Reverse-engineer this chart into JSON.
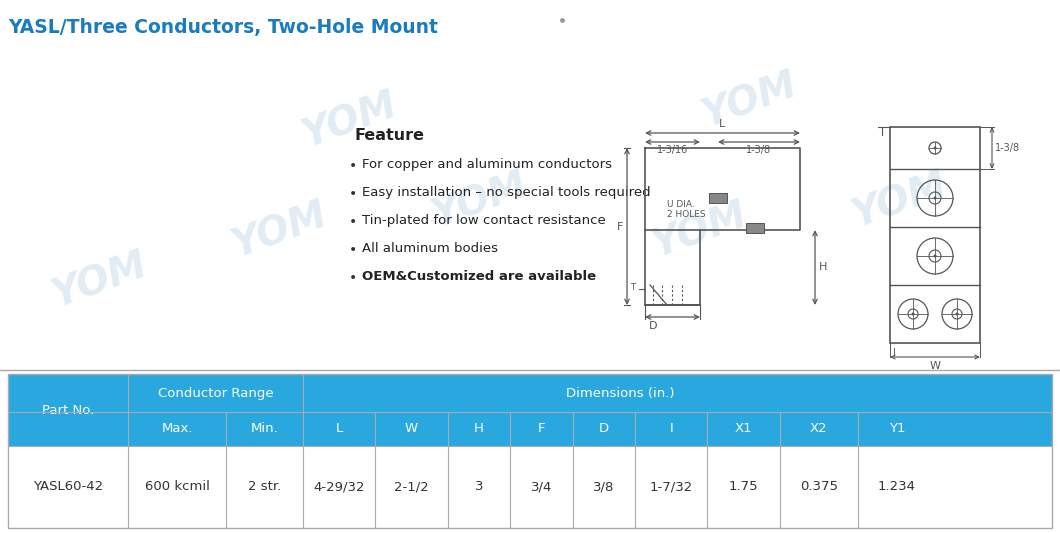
{
  "title": "YASL/Three Conductors, Two-Hole Mount",
  "title_color": "#1a7bbf",
  "background_color": "#ffffff",
  "feature_title": "Feature",
  "features": [
    "For copper and aluminum conductors",
    "Easy installation – no special tools required",
    "Tin-plated for low contact resistance",
    "All aluminum bodies",
    "OEM&Customized are available"
  ],
  "feature_bold_index": 4,
  "table_header_bg": "#29a8e0",
  "table_header_text": "#ffffff",
  "col_group1_header": "Conductor Range",
  "col_group2_header": "Dimensions (in.)",
  "col_headers": [
    "Part No.",
    "Max.",
    "Min.",
    "L",
    "W",
    "H",
    "F",
    "D",
    "I",
    "X1",
    "X2",
    "Y1"
  ],
  "col_data": [
    "YASL60-42",
    "600 kcmil",
    "2 str.",
    "4-29/32",
    "2-1/2",
    "3",
    "3/4",
    "3/8",
    "1-7/32",
    "1.75",
    "0.375",
    "1.234"
  ],
  "draw_color": "#555555",
  "watermark_color": "#c8dded"
}
